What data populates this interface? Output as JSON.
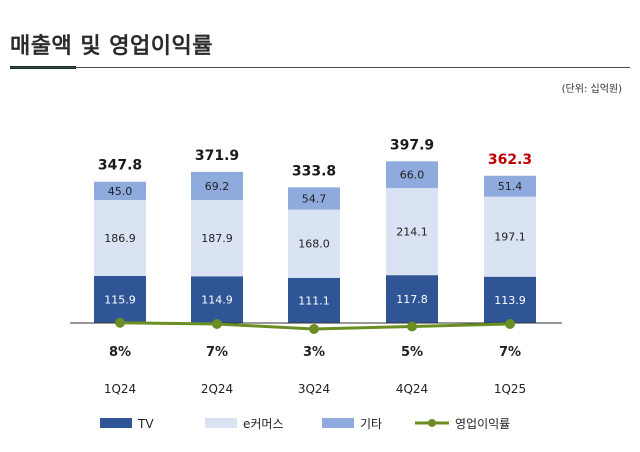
{
  "title": "매출액 및 영업이익률",
  "unit_note": "(단위: 십억원)",
  "colors": {
    "tv": "#2f5597",
    "ecommerce": "#dae3f3",
    "other": "#8faadc",
    "margin_line": "#6b8e23",
    "total_text": "#1a1a1a",
    "highlight_total": "#c00000"
  },
  "chart_data": {
    "type": "bar",
    "stacked": true,
    "categories": [
      "1Q24",
      "2Q24",
      "3Q24",
      "4Q24",
      "1Q25"
    ],
    "series": [
      {
        "name": "TV",
        "values": [
          115.9,
          114.9,
          111.1,
          117.8,
          113.9
        ]
      },
      {
        "name": "e커머스",
        "values": [
          186.9,
          187.9,
          168.0,
          214.1,
          197.1
        ]
      },
      {
        "name": "기타",
        "values": [
          45.0,
          69.2,
          54.7,
          66.0,
          51.4
        ]
      }
    ],
    "totals": [
      "347.8",
      "371.9",
      "333.8",
      "397.9",
      "362.3"
    ],
    "highlight_index": 4,
    "line_series": {
      "name": "영업이익률",
      "values": [
        8,
        7,
        3,
        5,
        7
      ],
      "labels": [
        "8%",
        "7%",
        "3%",
        "5%",
        "7%"
      ]
    },
    "legend": [
      "TV",
      "e커머스",
      "기타",
      "영업이익률"
    ],
    "legend_position": "bottom",
    "grid": false
  }
}
